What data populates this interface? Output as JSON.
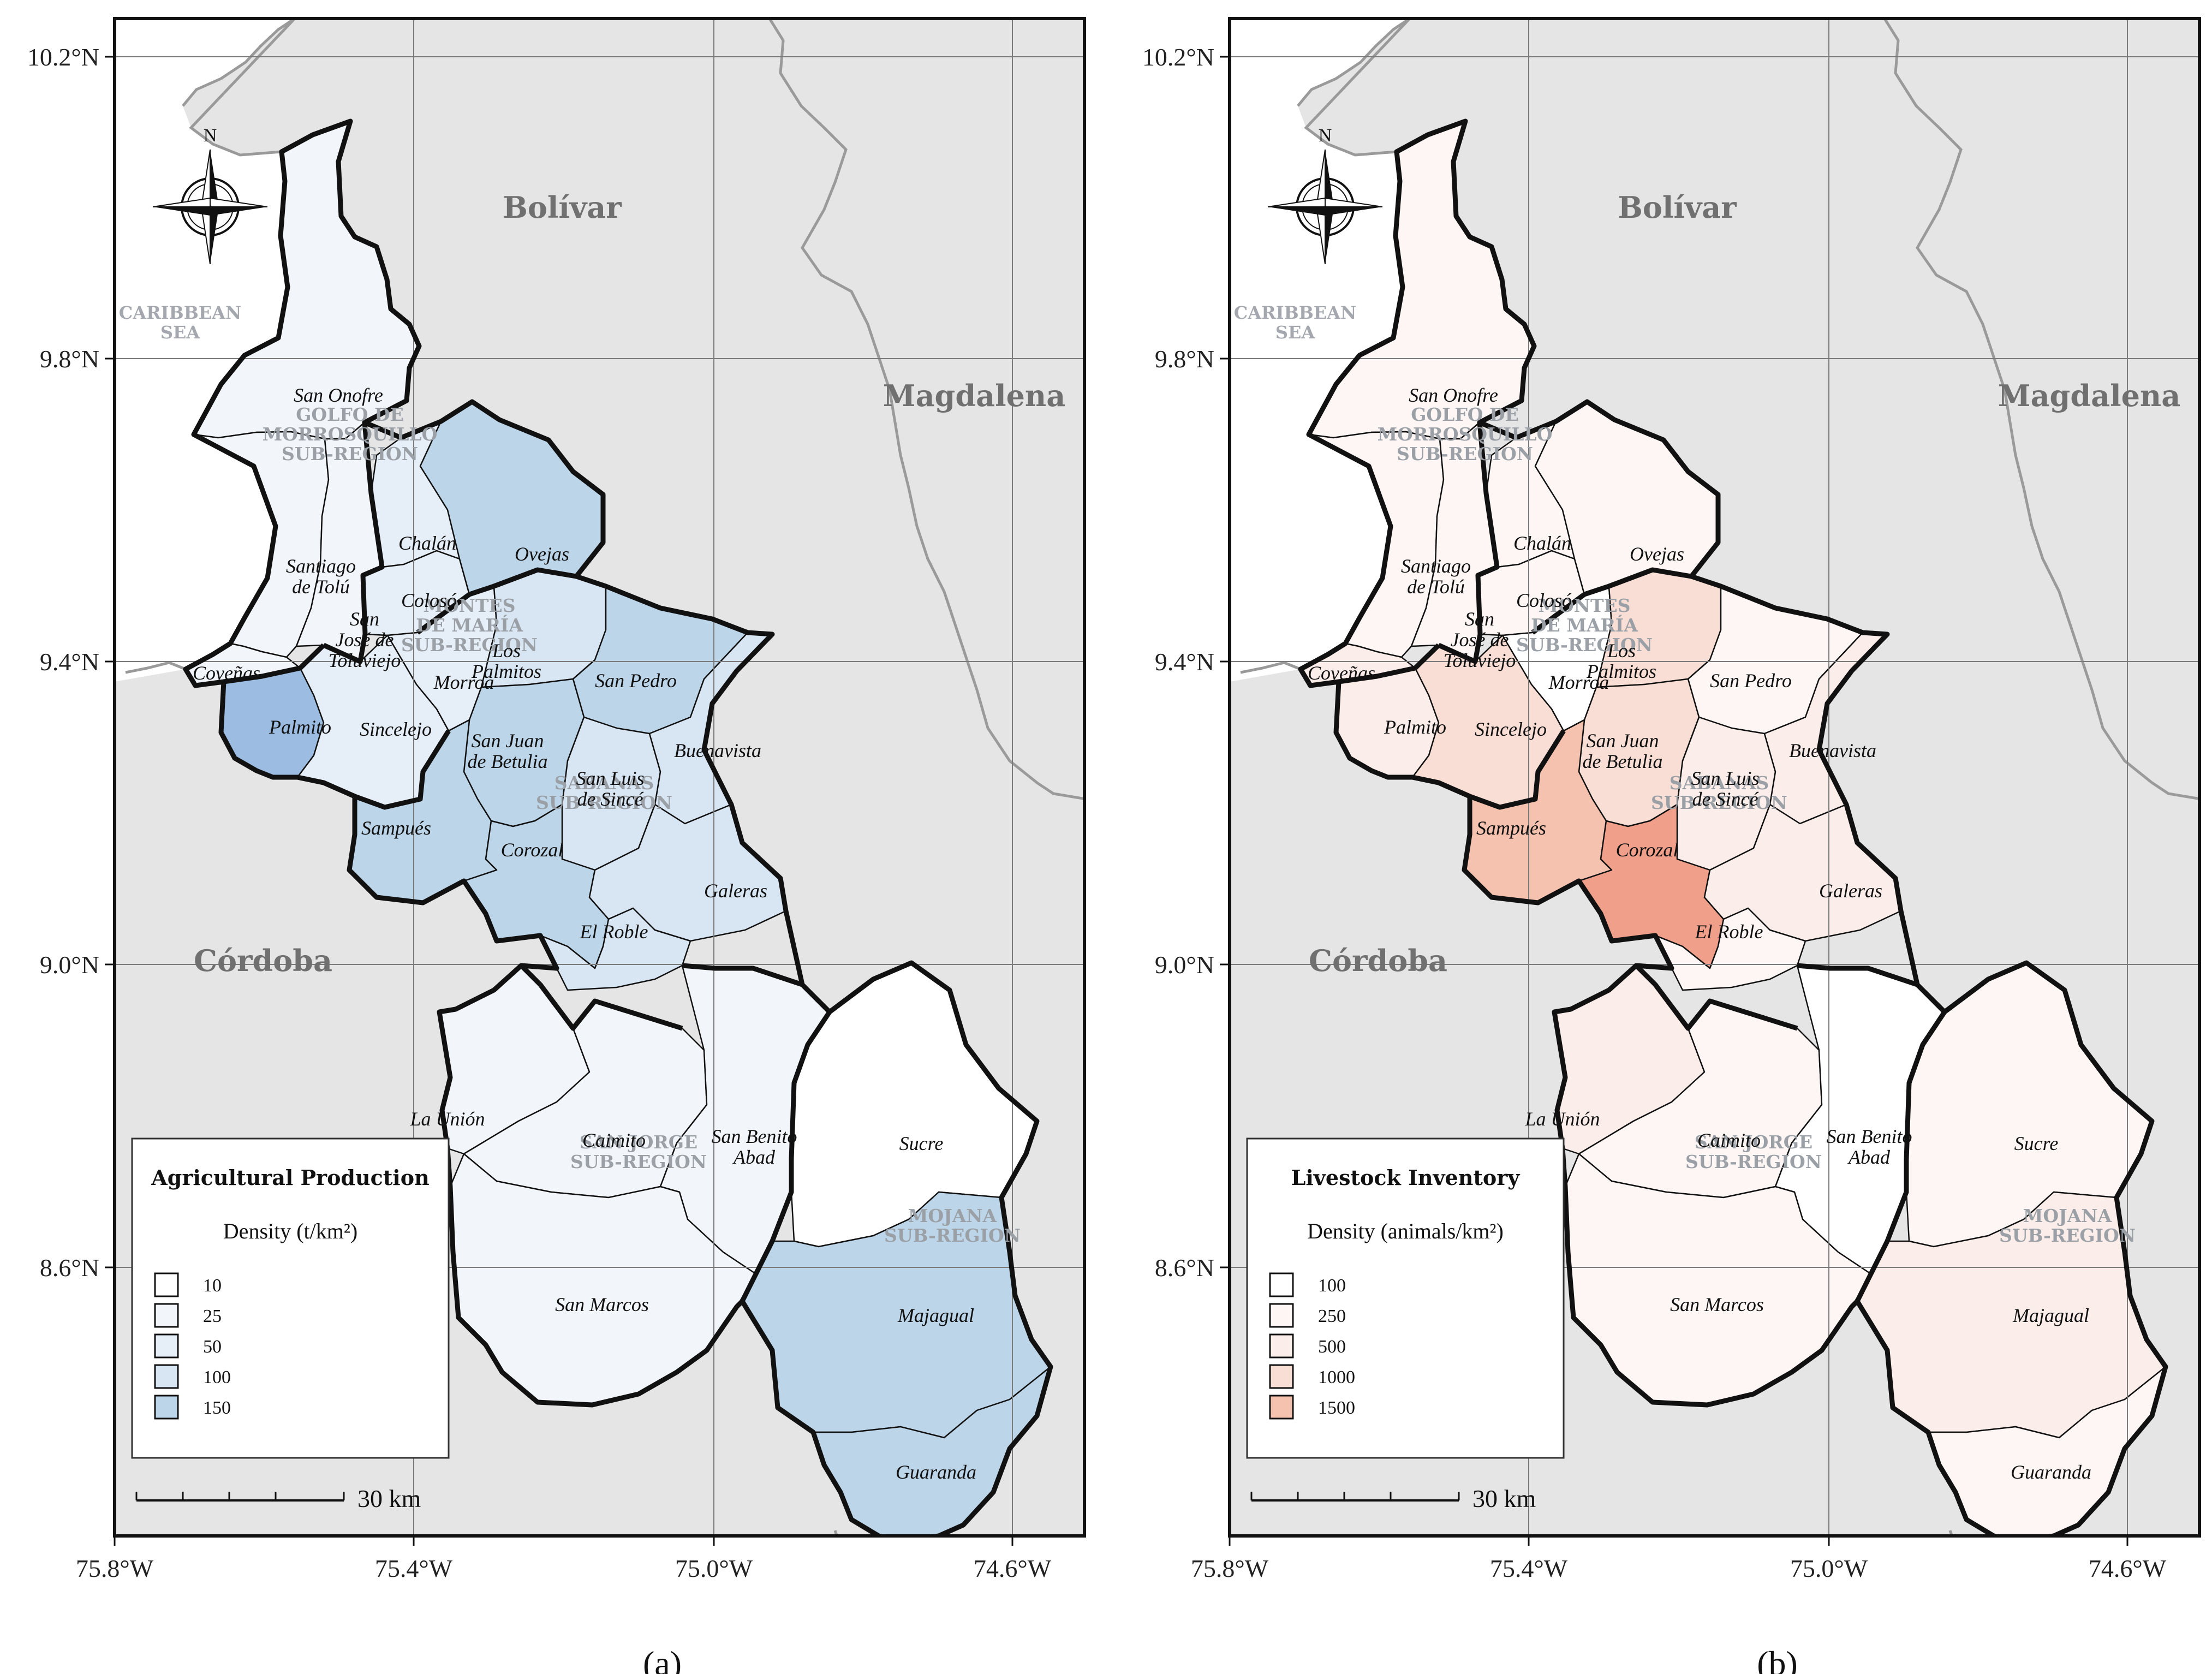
{
  "chart_data": [
    {
      "type": "choropleth-map",
      "panel_label": "(a)",
      "legend": {
        "title": "Agricultural Production",
        "subtitle": "Density (t/km²)",
        "classes": [
          "10",
          "25",
          "50",
          "100",
          "150"
        ],
        "colors": [
          "#ffffff",
          "#f2f6fb",
          "#e6eef7",
          "#d8e5f2",
          "#bcd5e8",
          "#9cbde1"
        ]
      },
      "scale_bar": "30 km",
      "x_ticks": [
        "75.8°W",
        "75.4°W",
        "75.0°W",
        "74.6°W"
      ],
      "y_ticks": [
        "10.2°N",
        "9.8°N",
        "9.4°N",
        "9.0°N",
        "8.6°N"
      ],
      "departments": [
        "Bolívar",
        "Magdalena",
        "Córdoba"
      ],
      "sea": [
        "CARIBBEAN",
        "SEA"
      ],
      "subregions": [
        [
          "GOLFO DE",
          "MORROSQUILLO",
          "SUB-REGION"
        ],
        [
          "MONTES",
          "DE MARÍA",
          "SUB-REGION"
        ],
        [
          "SABANAS",
          "SUB-REGION"
        ],
        [
          "SAN JORGE",
          "SUB-REGION"
        ],
        [
          "MOJANA",
          "SUB-REGION"
        ]
      ],
      "municipalities": {
        "san_onofre": {
          "name": [
            "San Onofre"
          ],
          "class": 1
        },
        "santiago_tolu": {
          "name": [
            "Santiago",
            "de Tolú"
          ],
          "class": 1
        },
        "tolu_viejo": {
          "name": [
            "San",
            "José de",
            "Toluviejo"
          ],
          "class": 1
        },
        "covenas": {
          "name": [
            "Coveñas"
          ],
          "class": 1
        },
        "palmito": {
          "name": [
            "Palmito"
          ],
          "class": 5
        },
        "chalan": {
          "name": [
            "Chalán"
          ],
          "class": 2
        },
        "coloso": {
          "name": [
            "Colosó"
          ],
          "class": 2
        },
        "ovejas": {
          "name": [
            "Ovejas"
          ],
          "class": 4
        },
        "morroa": {
          "name": [
            "Morroa"
          ],
          "class": 2
        },
        "sincelejo": {
          "name": [
            "Sincelejo"
          ],
          "class": 2
        },
        "los_palmitos": {
          "name": [
            "Los",
            "Palmitos"
          ],
          "class": 3
        },
        "san_pedro": {
          "name": [
            "San Pedro"
          ],
          "class": 4
        },
        "san_juan_betulia": {
          "name": [
            "San Juan",
            "de Betulia"
          ],
          "class": 4
        },
        "san_luis_since": {
          "name": [
            "San Luis",
            "de Sincé"
          ],
          "class": 3
        },
        "buenavista": {
          "name": [
            "Buenavista"
          ],
          "class": 3
        },
        "sampues": {
          "name": [
            "Sampués"
          ],
          "class": 4
        },
        "corozal": {
          "name": [
            "Corozal"
          ],
          "class": 4
        },
        "galeras": {
          "name": [
            "Galeras"
          ],
          "class": 3
        },
        "el_roble": {
          "name": [
            "El Roble"
          ],
          "class": 3
        },
        "la_union": {
          "name": [
            "La Unión"
          ],
          "class": 1
        },
        "caimito": {
          "name": [
            "Caimito"
          ],
          "class": 1
        },
        "san_benito": {
          "name": [
            "San Benito",
            "Abad"
          ],
          "class": 1
        },
        "san_marcos": {
          "name": [
            "San Marcos"
          ],
          "class": 1
        },
        "sucre": {
          "name": [
            "Sucre"
          ],
          "class": 0
        },
        "majagual": {
          "name": [
            "Majagual"
          ],
          "class": 4
        },
        "guaranda": {
          "name": [
            "Guaranda"
          ],
          "class": 4
        }
      }
    },
    {
      "type": "choropleth-map",
      "panel_label": "(b)",
      "legend": {
        "title": "Livestock Inventory",
        "subtitle": "Density (animals/km²)",
        "classes": [
          "100",
          "250",
          "500",
          "1000",
          "1500"
        ],
        "colors": [
          "#ffffff",
          "#fdf6f4",
          "#fbeeea",
          "#f8ded5",
          "#f5c2af",
          "#f0a08a"
        ]
      },
      "scale_bar": "30 km",
      "x_ticks": [
        "75.8°W",
        "75.4°W",
        "75.0°W",
        "74.6°W"
      ],
      "y_ticks": [
        "10.2°N",
        "9.8°N",
        "9.4°N",
        "9.0°N",
        "8.6°N"
      ],
      "departments": [
        "Bolívar",
        "Magdalena",
        "Córdoba"
      ],
      "sea": [
        "CARIBBEAN",
        "SEA"
      ],
      "subregions": [
        [
          "GOLFO DE",
          "MORROSQUILLO",
          "SUB-REGION"
        ],
        [
          "MONTES",
          "DE MARÍA",
          "SUB-REGION"
        ],
        [
          "SABANAS",
          "SUB-REGION"
        ],
        [
          "SAN JORGE",
          "SUB-REGION"
        ],
        [
          "MOJANA",
          "SUB-REGION"
        ]
      ],
      "municipalities": {
        "san_onofre": {
          "name": [
            "San Onofre"
          ],
          "class": 1
        },
        "santiago_tolu": {
          "name": [
            "Santiago",
            "de Tolú"
          ],
          "class": 1
        },
        "tolu_viejo": {
          "name": [
            "San",
            "José de",
            "Toluviejo"
          ],
          "class": 1
        },
        "covenas": {
          "name": [
            "Coveñas"
          ],
          "class": 2
        },
        "palmito": {
          "name": [
            "Palmito"
          ],
          "class": 2
        },
        "chalan": {
          "name": [
            "Chalán"
          ],
          "class": 1
        },
        "coloso": {
          "name": [
            "Colosó"
          ],
          "class": 1
        },
        "ovejas": {
          "name": [
            "Ovejas"
          ],
          "class": 1
        },
        "morroa": {
          "name": [
            "Morroa"
          ],
          "class": 0
        },
        "sincelejo": {
          "name": [
            "Sincelejo"
          ],
          "class": 3
        },
        "los_palmitos": {
          "name": [
            "Los",
            "Palmitos"
          ],
          "class": 3
        },
        "san_pedro": {
          "name": [
            "San Pedro"
          ],
          "class": 1
        },
        "san_juan_betulia": {
          "name": [
            "San Juan",
            "de Betulia"
          ],
          "class": 3
        },
        "san_luis_since": {
          "name": [
            "San Luis",
            "de Sincé"
          ],
          "class": 2
        },
        "buenavista": {
          "name": [
            "Buenavista"
          ],
          "class": 2
        },
        "sampues": {
          "name": [
            "Sampués"
          ],
          "class": 4
        },
        "corozal": {
          "name": [
            "Corozal"
          ],
          "class": 5
        },
        "galeras": {
          "name": [
            "Galeras"
          ],
          "class": 2
        },
        "el_roble": {
          "name": [
            "El Roble"
          ],
          "class": 1
        },
        "la_union": {
          "name": [
            "La Unión"
          ],
          "class": 2
        },
        "caimito": {
          "name": [
            "Caimito"
          ],
          "class": 1
        },
        "san_benito": {
          "name": [
            "San Benito",
            "Abad"
          ],
          "class": 0
        },
        "san_marcos": {
          "name": [
            "San Marcos"
          ],
          "class": 1
        },
        "sucre": {
          "name": [
            "Sucre"
          ],
          "class": 1
        },
        "majagual": {
          "name": [
            "Majagual"
          ],
          "class": 2
        },
        "guaranda": {
          "name": [
            "Guaranda"
          ],
          "class": 1
        }
      }
    }
  ],
  "map_style": {
    "background": "#e5e5e5",
    "land_outline": "#111111",
    "river": "#9a9a9a",
    "grid": "#7a7a7a"
  },
  "north_arrow": "N"
}
